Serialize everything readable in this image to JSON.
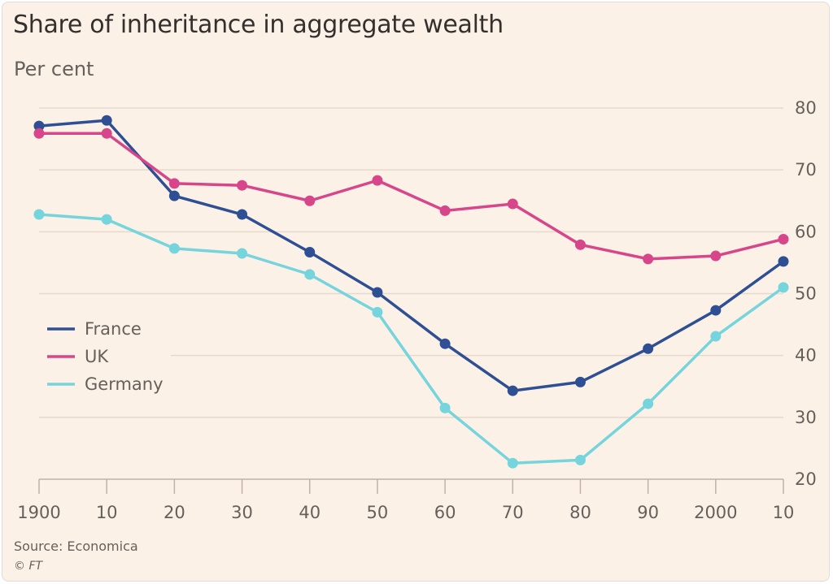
{
  "chart_data": {
    "type": "line",
    "title": "Share of inheritance in aggregate wealth",
    "subtitle": "Per cent",
    "x": [
      1900,
      1910,
      1920,
      1930,
      1940,
      1950,
      1960,
      1970,
      1980,
      1990,
      2000,
      2010
    ],
    "x_tick_labels": [
      "1900",
      "10",
      "20",
      "30",
      "40",
      "50",
      "60",
      "70",
      "80",
      "90",
      "2000",
      "10"
    ],
    "y_ticks": [
      20,
      30,
      40,
      50,
      60,
      70,
      80
    ],
    "ylim": [
      20,
      80
    ],
    "y_axis_side": "right",
    "grid": true,
    "legend_position": "left-middle",
    "series": [
      {
        "name": "France",
        "color": "#2e4f94",
        "values": [
          77.1,
          78.0,
          65.8,
          62.8,
          56.7,
          50.2,
          41.9,
          34.3,
          35.7,
          41.1,
          47.3,
          55.2
        ]
      },
      {
        "name": "UK",
        "color": "#d7458b",
        "values": [
          75.9,
          75.9,
          67.8,
          67.5,
          65.0,
          68.3,
          63.4,
          64.5,
          57.9,
          55.6,
          56.1,
          58.8
        ]
      },
      {
        "name": "Germany",
        "color": "#76d4dd",
        "values": [
          62.8,
          62.0,
          57.3,
          56.5,
          53.1,
          47.0,
          31.5,
          22.6,
          23.1,
          32.2,
          43.1,
          51.0
        ]
      }
    ],
    "source": "Source: Economica",
    "credit": "© FT"
  }
}
